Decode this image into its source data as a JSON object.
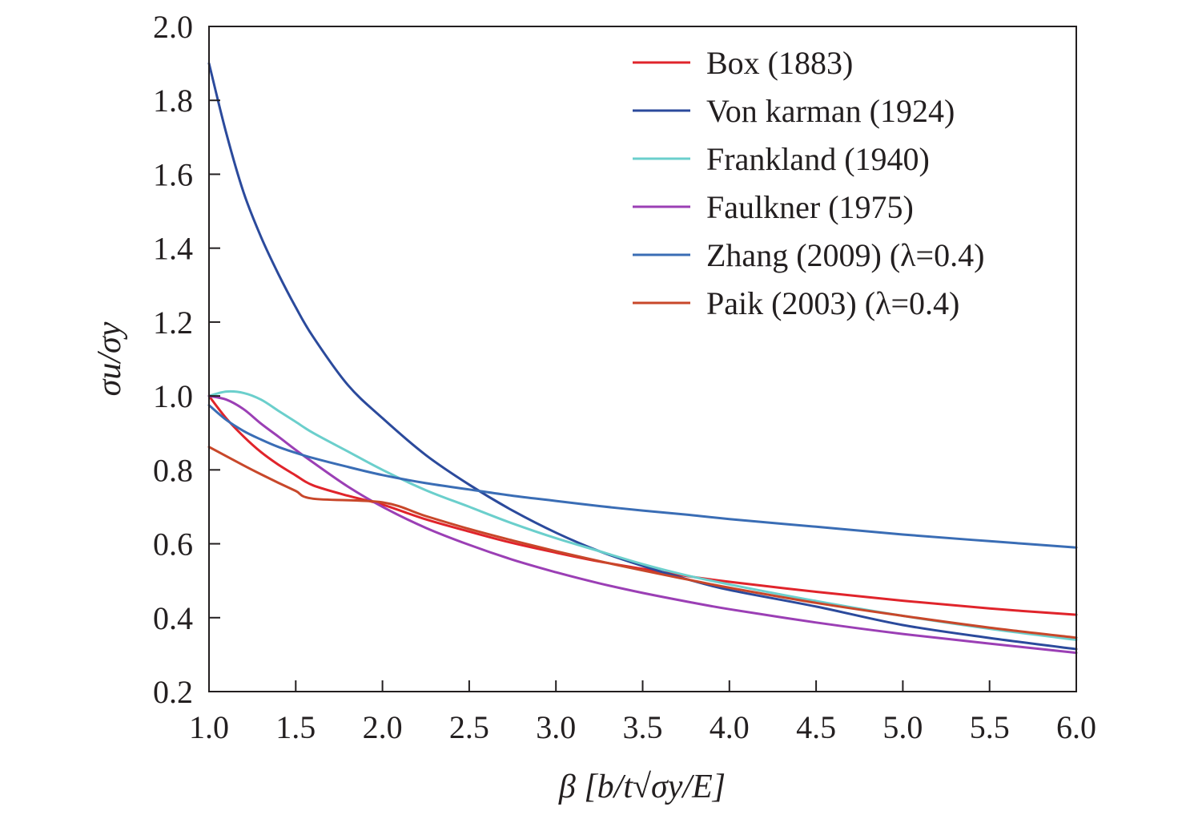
{
  "chart_data": {
    "type": "line",
    "xlabel": "β [b/t√σy/E]",
    "ylabel": "σu/σy",
    "xlim": [
      1.0,
      6.0
    ],
    "ylim": [
      0.2,
      2.0
    ],
    "x_ticks": [
      "1.0",
      "1.5",
      "2.0",
      "2.5",
      "3.0",
      "3.5",
      "4.0",
      "4.5",
      "5.0",
      "5.5",
      "6.0"
    ],
    "y_ticks": [
      "0.2",
      "0.4",
      "0.6",
      "0.8",
      "1.0",
      "1.2",
      "1.4",
      "1.6",
      "1.8",
      "2.0"
    ],
    "grid": false,
    "legend_position": "top-right",
    "x": [
      1.0,
      1.1,
      1.2,
      1.3,
      1.4,
      1.5,
      1.6,
      1.8,
      2.0,
      2.25,
      2.5,
      2.75,
      3.0,
      3.25,
      3.5,
      3.75,
      4.0,
      4.5,
      5.0,
      5.5,
      6.0
    ],
    "series": [
      {
        "name": "Box (1883)",
        "color": "#e0242b",
        "values": [
          1.0,
          0.939,
          0.89,
          0.848,
          0.814,
          0.785,
          0.758,
          0.73,
          0.706,
          0.666,
          0.633,
          0.602,
          0.576,
          0.552,
          0.532,
          0.513,
          0.497,
          0.47,
          0.446,
          0.425,
          0.408
        ]
      },
      {
        "name": "Von karman (1924)",
        "color": "#2b4a9c",
        "values": [
          1.9,
          1.71,
          1.55,
          1.43,
          1.33,
          1.24,
          1.16,
          1.03,
          0.94,
          0.84,
          0.76,
          0.69,
          0.63,
          0.58,
          0.54,
          0.505,
          0.475,
          0.43,
          0.38,
          0.345,
          0.315
        ]
      },
      {
        "name": "Frankland (1940)",
        "color": "#6bcfcc",
        "values": [
          1.0,
          1.012,
          1.008,
          0.99,
          0.96,
          0.93,
          0.9,
          0.85,
          0.8,
          0.745,
          0.7,
          0.655,
          0.615,
          0.58,
          0.545,
          0.515,
          0.49,
          0.445,
          0.405,
          0.37,
          0.34
        ]
      },
      {
        "name": "Faulkner (1975)",
        "color": "#9b3fb5",
        "values": [
          1.0,
          0.99,
          0.964,
          0.925,
          0.89,
          0.854,
          0.82,
          0.755,
          0.7,
          0.643,
          0.597,
          0.557,
          0.523,
          0.493,
          0.467,
          0.444,
          0.423,
          0.387,
          0.356,
          0.33,
          0.305
        ]
      },
      {
        "name": "Zhang (2009) (λ=0.4)",
        "color": "#3a6db5",
        "values": [
          0.975,
          0.935,
          0.905,
          0.882,
          0.862,
          0.846,
          0.832,
          0.808,
          0.786,
          0.764,
          0.747,
          0.73,
          0.716,
          0.702,
          0.69,
          0.679,
          0.667,
          0.646,
          0.625,
          0.607,
          0.59
        ]
      },
      {
        "name": "Paik (2003) (λ=0.4)",
        "color": "#c8472a",
        "values": [
          0.862,
          0.837,
          0.812,
          0.788,
          0.765,
          0.743,
          0.722,
          0.682,
          0.712,
          0.675,
          0.64,
          0.609,
          0.58,
          0.553,
          0.528,
          0.504,
          0.481,
          0.44,
          0.405,
          0.373,
          0.346
        ]
      }
    ]
  }
}
